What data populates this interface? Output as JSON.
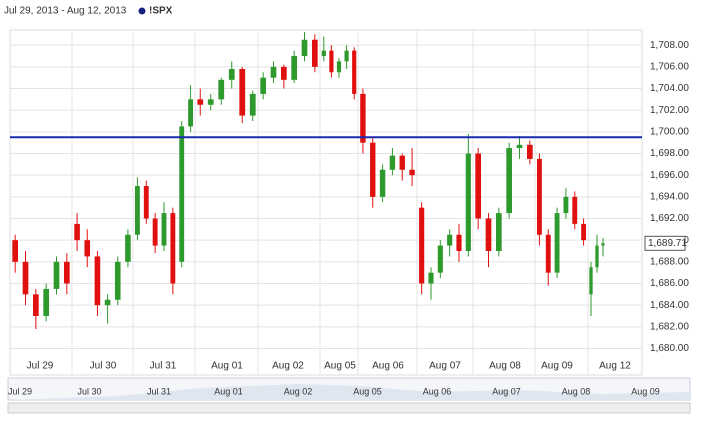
{
  "chart_data": {
    "type": "candlestick",
    "date_range": "Jul 29, 2013 - Aug 12, 2013",
    "series": [
      {
        "name": "!SPX",
        "color": "#1a237e"
      }
    ],
    "up_color": "#2e9a2e",
    "down_color": "#e01010",
    "categories": [
      "Jul 29",
      "Jul 30",
      "Jul 31",
      "Aug 01",
      "Aug 02",
      "Aug 05",
      "Aug 06",
      "Aug 07",
      "Aug 08",
      "Aug 09",
      "Aug 12"
    ],
    "ohlc": [
      [
        [
          1690,
          1690.5,
          1687,
          1688
        ],
        [
          1688,
          1689,
          1684,
          1685
        ],
        [
          1685,
          1685.5,
          1681.8,
          1683
        ],
        [
          1683,
          1686,
          1682.5,
          1685.5
        ],
        [
          1685.5,
          1688.5,
          1685,
          1688
        ],
        [
          1688,
          1688.8,
          1685,
          1686
        ]
      ],
      [
        [
          1691.5,
          1692.5,
          1689,
          1690
        ],
        [
          1690,
          1691,
          1687.5,
          1688.5
        ],
        [
          1688.5,
          1689,
          1683,
          1684
        ],
        [
          1684,
          1685,
          1682.3,
          1684.5
        ],
        [
          1684.5,
          1688.5,
          1684,
          1688
        ],
        [
          1688,
          1691,
          1687.5,
          1690.5
        ]
      ],
      [
        [
          1690.5,
          1695.8,
          1690,
          1695
        ],
        [
          1695,
          1695.5,
          1691.5,
          1692
        ],
        [
          1692,
          1692.5,
          1688.8,
          1689.5
        ],
        [
          1689.5,
          1693.5,
          1689,
          1692.5
        ],
        [
          1692.5,
          1693,
          1685,
          1686
        ],
        [
          1688,
          1701,
          1687.5,
          1700.5
        ],
        [
          1700.5,
          1704.3,
          1700,
          1703
        ]
      ],
      [
        [
          1703,
          1704,
          1701.5,
          1702.5
        ],
        [
          1702.5,
          1703.5,
          1702,
          1703
        ],
        [
          1703,
          1705,
          1702.5,
          1704.8
        ],
        [
          1704.8,
          1706.5,
          1704,
          1705.8
        ],
        [
          1705.8,
          1706,
          1700.8,
          1701.5
        ],
        [
          1701.5,
          1703.8,
          1701,
          1703.5
        ]
      ],
      [
        [
          1703.5,
          1705.5,
          1703,
          1705
        ],
        [
          1705,
          1706.5,
          1704.5,
          1706
        ],
        [
          1706,
          1706.2,
          1704,
          1704.8
        ],
        [
          1704.8,
          1707.5,
          1704.5,
          1707
        ],
        [
          1707,
          1709.2,
          1706.5,
          1708.5
        ],
        [
          1708.5,
          1709,
          1705.5,
          1706
        ]
      ],
      [
        [
          1707,
          1708.8,
          1706.5,
          1707.5
        ],
        [
          1707.5,
          1708,
          1705,
          1705.5
        ],
        [
          1705.5,
          1706.8,
          1705,
          1706.5
        ],
        [
          1706.5,
          1708,
          1705.8,
          1707.5
        ],
        [
          1707.5,
          1707.8,
          1703,
          1703.5
        ]
      ],
      [
        [
          1703.5,
          1704,
          1698,
          1699
        ],
        [
          1699,
          1699.5,
          1693,
          1694
        ],
        [
          1694,
          1697,
          1693.5,
          1696.5
        ],
        [
          1696.5,
          1698.5,
          1696,
          1697.8
        ],
        [
          1697.8,
          1698,
          1695.5,
          1696.5
        ],
        [
          1696.5,
          1698.5,
          1695,
          1696
        ]
      ],
      [
        [
          1693,
          1693.5,
          1685,
          1686
        ],
        [
          1686,
          1687.5,
          1684.5,
          1687
        ],
        [
          1687,
          1690,
          1686.5,
          1689.5
        ],
        [
          1689.5,
          1691,
          1688.5,
          1690.5
        ],
        [
          1690.5,
          1691.5,
          1688,
          1689
        ],
        [
          1689,
          1699.8,
          1688.5,
          1698
        ]
      ],
      [
        [
          1698,
          1698.5,
          1691,
          1692
        ],
        [
          1692,
          1692.5,
          1687.5,
          1689
        ],
        [
          1689,
          1693,
          1688.5,
          1692.5
        ],
        [
          1692.5,
          1699,
          1692,
          1698.5
        ],
        [
          1698.5,
          1699.6,
          1697.5,
          1698.8
        ],
        [
          1698.8,
          1699.2,
          1697,
          1697.5
        ]
      ],
      [
        [
          1697.5,
          1698,
          1689.5,
          1690.5
        ],
        [
          1690.5,
          1691,
          1685.8,
          1687
        ],
        [
          1687,
          1693,
          1686.5,
          1692.5
        ],
        [
          1692.5,
          1694.8,
          1692,
          1694
        ],
        [
          1694,
          1694.5,
          1691,
          1691.5
        ],
        [
          1691.5,
          1692,
          1689.5,
          1690
        ]
      ],
      [
        [
          1685,
          1688,
          1683,
          1687.5
        ],
        [
          1687.5,
          1690.5,
          1687,
          1689.5
        ],
        [
          1689.5,
          1690.2,
          1688.5,
          1689.71
        ]
      ]
    ],
    "ylim": [
      1678.2,
      1709.4
    ],
    "yticks": [
      {
        "value": 1680,
        "label": "1,680.00"
      },
      {
        "value": 1682,
        "label": "1,682.00"
      },
      {
        "value": 1684,
        "label": "1,684.00"
      },
      {
        "value": 1686,
        "label": "1,686.00"
      },
      {
        "value": 1688,
        "label": "1,688.00"
      },
      {
        "value": 1690,
        "label": "1,690.00"
      },
      {
        "value": 1692,
        "label": "1,692.00"
      },
      {
        "value": 1694,
        "label": "1,694.00"
      },
      {
        "value": 1696,
        "label": "1,696.00"
      },
      {
        "value": 1698,
        "label": "1,698.00"
      },
      {
        "value": 1700,
        "label": "1,700.00"
      },
      {
        "value": 1702,
        "label": "1,702.00"
      },
      {
        "value": 1704,
        "label": "1,704.00"
      },
      {
        "value": 1706,
        "label": "1,706.00"
      },
      {
        "value": 1708,
        "label": "1,708.00"
      }
    ],
    "grid": true,
    "reference_line": {
      "value": 1699.5,
      "color": "#1a2ab0"
    },
    "last_price": {
      "value": 1689.71,
      "label": "1,689.71"
    },
    "navigator_labels": [
      "Jul 29",
      "Jul 30",
      "Jul 31",
      "Aug 01",
      "Aug 02",
      "Aug 05",
      "Aug 06",
      "Aug 07",
      "Aug 08",
      "Aug 09"
    ]
  }
}
